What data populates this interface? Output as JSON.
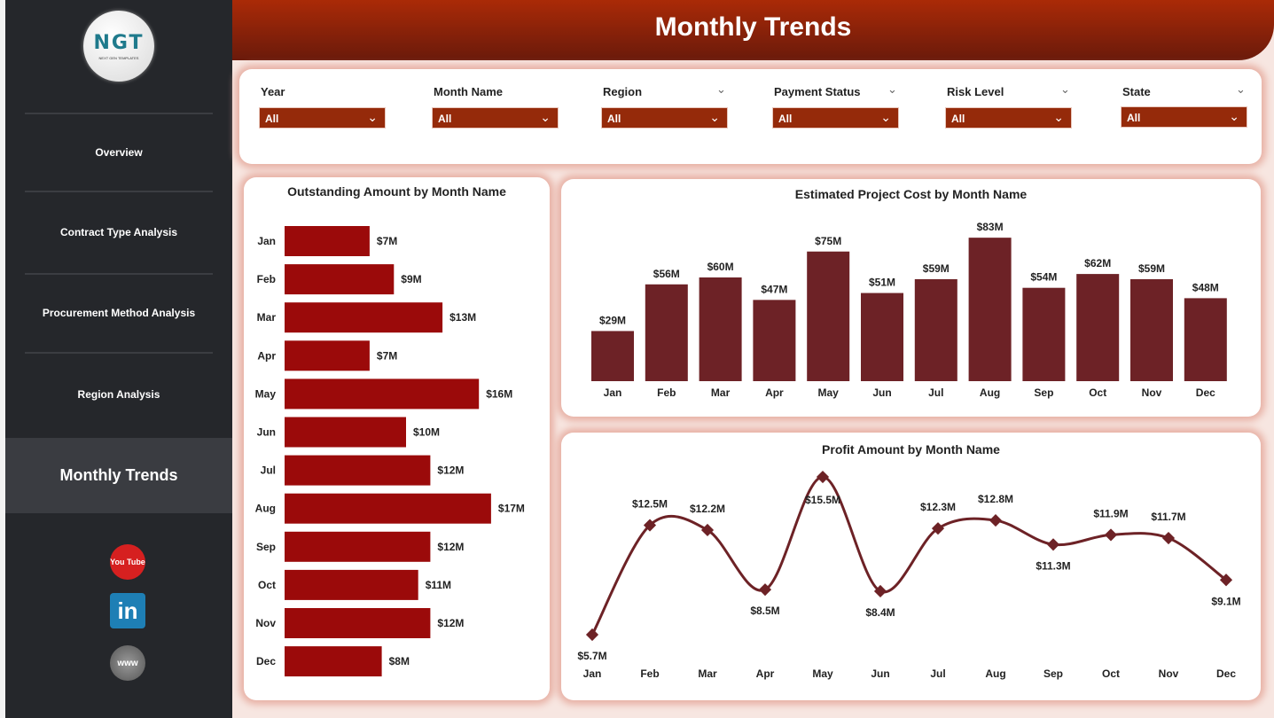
{
  "sidebar": {
    "logo_text": "NGT",
    "logo_subtext": "NEXT GEN TEMPLATES",
    "items": [
      "Overview",
      "Contract Type Analysis",
      "Procurement Method Analysis",
      "Region Analysis",
      "Monthly Trends"
    ],
    "active": "Monthly Trends",
    "social": [
      "youtube-icon",
      "linkedin-icon",
      "website-icon"
    ],
    "youtube_label": "You Tube",
    "linkedin_label": "in",
    "website_label": "www"
  },
  "header": {
    "title": "Monthly Trends"
  },
  "filters": [
    {
      "label": "Year",
      "value": "All"
    },
    {
      "label": "Month Name",
      "value": "All"
    },
    {
      "label": "Region",
      "value": "All"
    },
    {
      "label": "Payment Status",
      "value": "All"
    },
    {
      "label": "Risk Level",
      "value": "All"
    },
    {
      "label": "State",
      "value": "All"
    }
  ],
  "colors": {
    "bar_h": "#9b0a0a",
    "bar_v": "#6d2226",
    "line": "#6d2226"
  },
  "chart_data": [
    {
      "type": "bar",
      "orientation": "horizontal",
      "title": "Outstanding Amount by Month Name",
      "categories": [
        "Jan",
        "Feb",
        "Mar",
        "Apr",
        "May",
        "Jun",
        "Jul",
        "Aug",
        "Sep",
        "Oct",
        "Nov",
        "Dec"
      ],
      "values": [
        7,
        9,
        13,
        7,
        16,
        10,
        12,
        17,
        12,
        11,
        12,
        8
      ],
      "labels": [
        "$7M",
        "$9M",
        "$13M",
        "$7M",
        "$16M",
        "$10M",
        "$12M",
        "$17M",
        "$12M",
        "$11M",
        "$12M",
        "$8M"
      ],
      "unit": "$M"
    },
    {
      "type": "bar",
      "title": "Estimated Project Cost by Month Name",
      "categories": [
        "Jan",
        "Feb",
        "Mar",
        "Apr",
        "May",
        "Jun",
        "Jul",
        "Aug",
        "Sep",
        "Oct",
        "Nov",
        "Dec"
      ],
      "values": [
        29,
        56,
        60,
        47,
        75,
        51,
        59,
        83,
        54,
        62,
        59,
        48
      ],
      "labels": [
        "$29M",
        "$56M",
        "$60M",
        "$47M",
        "$75M",
        "$51M",
        "$59M",
        "$83M",
        "$54M",
        "$62M",
        "$59M",
        "$48M"
      ],
      "unit": "$M"
    },
    {
      "type": "line",
      "title": "Profit Amount by Month Name",
      "categories": [
        "Jan",
        "Feb",
        "Mar",
        "Apr",
        "May",
        "Jun",
        "Jul",
        "Aug",
        "Sep",
        "Oct",
        "Nov",
        "Dec"
      ],
      "values": [
        5.7,
        12.5,
        12.2,
        8.5,
        15.5,
        8.4,
        12.3,
        12.8,
        11.3,
        11.9,
        11.7,
        9.1
      ],
      "labels": [
        "$5.7M",
        "$12.5M",
        "$12.2M",
        "$8.5M",
        "$15.5M",
        "$8.4M",
        "$12.3M",
        "$12.8M",
        "$11.3M",
        "$11.9M",
        "$11.7M",
        "$9.1M"
      ],
      "unit": "$M"
    }
  ]
}
